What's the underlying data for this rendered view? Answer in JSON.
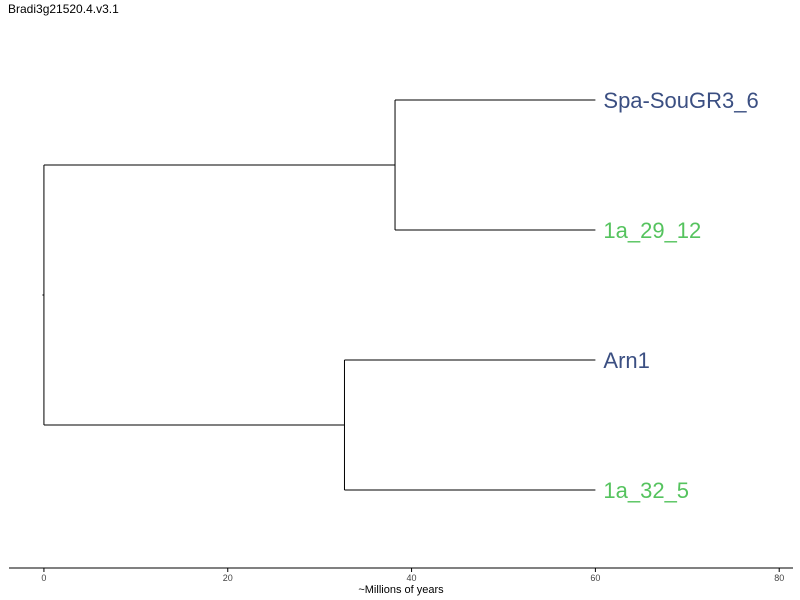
{
  "title": "Bradi3g21520.4.v3.1",
  "chart_data": {
    "type": "dendrogram",
    "xlabel": "~Millions of years",
    "xlim": [
      -3.8,
      81.5
    ],
    "ticks": [
      0,
      20,
      40,
      60,
      80
    ],
    "tips": [
      {
        "name": "Spa-SouGR3_6",
        "color": "#3b4f82",
        "depth": 60
      },
      {
        "name": "1a_29_12",
        "color": "#55c35e",
        "depth": 60
      },
      {
        "name": "Arn1",
        "color": "#3b4f82",
        "depth": 60
      },
      {
        "name": "1a_32_5",
        "color": "#55c35e",
        "depth": 60
      }
    ],
    "nodes": [
      {
        "name": "root",
        "depth": 0,
        "children": [
          "clade-A",
          "clade-B"
        ]
      },
      {
        "name": "clade-A",
        "depth": 38.2,
        "children": [
          "Spa-SouGR3_6",
          "1a_29_12"
        ]
      },
      {
        "name": "clade-B",
        "depth": 32.7,
        "children": [
          "Arn1",
          "1a_32_5"
        ]
      }
    ]
  }
}
